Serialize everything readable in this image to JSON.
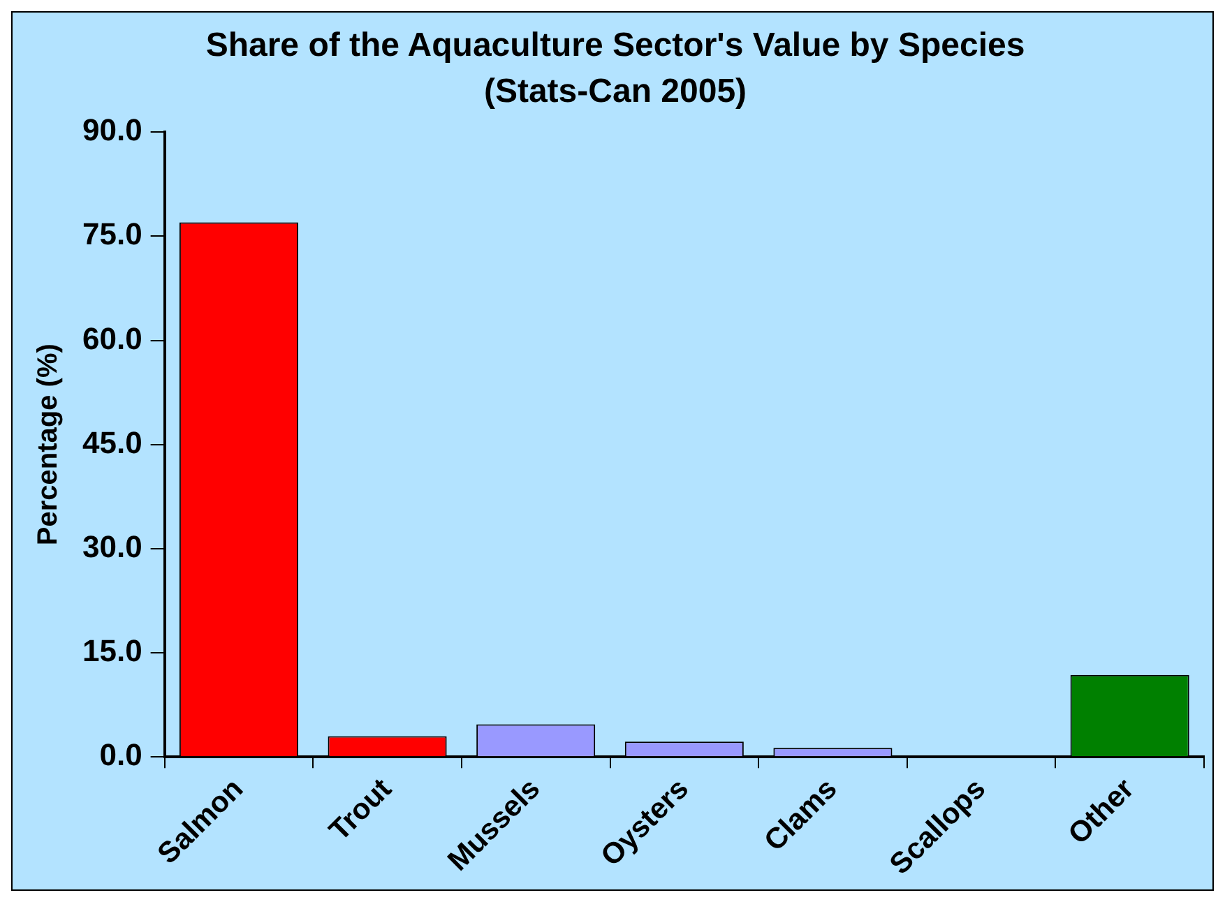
{
  "chart_data": {
    "type": "bar",
    "title": "Share of the Aquaculture Sector's Value by Species",
    "subtitle": "(Stats-Can 2005)",
    "ylabel": "Percentage (%)",
    "categories": [
      "Salmon",
      "Trout",
      "Mussels",
      "Oysters",
      "Clams",
      "Scallops",
      "Other"
    ],
    "values": [
      77.0,
      3.0,
      4.7,
      2.2,
      1.3,
      0,
      11.8
    ],
    "colors": [
      "#ff0000",
      "#ff0000",
      "#9999ff",
      "#9999ff",
      "#9999ff",
      "#9999ff",
      "#008000"
    ],
    "ylim": [
      0,
      90
    ],
    "yticks": [
      {
        "value": 0,
        "label": "0.0"
      },
      {
        "value": 15,
        "label": "15.0"
      },
      {
        "value": 30,
        "label": "30.0"
      },
      {
        "value": 45,
        "label": "45.0"
      },
      {
        "value": 60,
        "label": "60.0"
      },
      {
        "value": 75,
        "label": "75.0"
      },
      {
        "value": 90,
        "label": "90.0"
      }
    ],
    "grid": false,
    "legend": false
  }
}
